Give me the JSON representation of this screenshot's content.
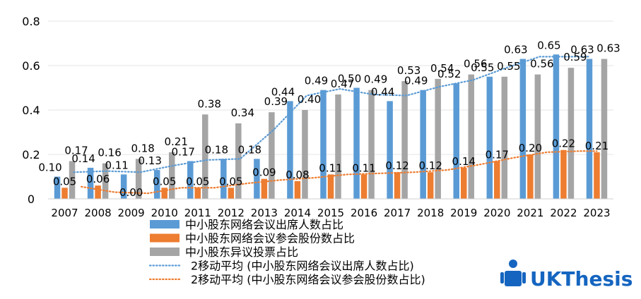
{
  "chart_data": {
    "type": "bar",
    "title": "",
    "xlabel": "",
    "ylabel": "",
    "ylim": [
      0,
      0.8
    ],
    "yticks": [
      "0",
      "0.2",
      "0.4",
      "0.6",
      "0.8"
    ],
    "ytick_values": [
      0,
      0.2,
      0.4,
      0.6,
      0.8
    ],
    "categories": [
      "2007",
      "2008",
      "2009",
      "2010",
      "2011",
      "2012",
      "2013",
      "2014",
      "2015",
      "2016",
      "2017",
      "2018",
      "2019",
      "2020",
      "2021",
      "2022",
      "2023"
    ],
    "series": [
      {
        "name": "中小股东网络会议出席人数占比",
        "color": "#5B9BD5",
        "values": [
          0.1,
          0.14,
          0.11,
          0.13,
          0.17,
          0.18,
          0.18,
          0.44,
          0.49,
          0.5,
          0.44,
          0.49,
          0.52,
          0.55,
          0.63,
          0.65,
          0.63
        ],
        "labels": [
          "0.10",
          "0.14",
          "0.11",
          "0.13",
          "0.17",
          "0.18",
          "0.18",
          "0.44",
          "0.49",
          "0.50",
          "0.44",
          "0.49",
          "0.52",
          "0.55",
          "0.63",
          "0.65",
          "0.63"
        ]
      },
      {
        "name": "中小股东网络会议参会股份数占比",
        "color": "#ED7D31",
        "values": [
          0.05,
          0.06,
          0.0,
          0.05,
          0.05,
          0.05,
          0.09,
          0.08,
          0.11,
          0.11,
          0.12,
          0.12,
          0.14,
          0.17,
          0.2,
          0.22,
          0.21
        ],
        "labels": [
          "0.05",
          "0.06",
          "0.00",
          "0.05",
          "0.05",
          "0.05",
          "0.09",
          "0.08",
          "0.11",
          "0.11",
          "0.12",
          "0.12",
          "0.14",
          "0.17",
          "0.20",
          "0.22",
          "0.21"
        ]
      },
      {
        "name": "中小股东异议投票占比",
        "color": "#A5A5A5",
        "values": [
          0.17,
          0.16,
          0.18,
          0.21,
          0.38,
          0.34,
          0.39,
          0.4,
          0.47,
          0.49,
          0.53,
          0.54,
          0.56,
          0.55,
          0.56,
          0.59,
          0.63
        ],
        "labels": [
          "0.17",
          "0.16",
          "0.18",
          "0.21",
          "0.38",
          "0.34",
          "0.39",
          "0.40",
          "0.47",
          "0.49",
          "0.53",
          "0.54",
          "0.56",
          "0.55",
          "0.56",
          "0.59",
          "0.63"
        ]
      }
    ],
    "trendlines": [
      {
        "name": "2移动平均 (中小股东网络会议出席人数占比)",
        "of_series": 0,
        "period": 2,
        "color": "#5B9BD5"
      },
      {
        "name": "2移动平均 (中小股东网络会议参会股份数占比)",
        "of_series": 1,
        "period": 2,
        "color": "#ED7D31"
      }
    ],
    "grid": true,
    "legend_position": "bottom-left"
  },
  "watermark": {
    "text": "UKThesis",
    "color": "#1565C0"
  }
}
